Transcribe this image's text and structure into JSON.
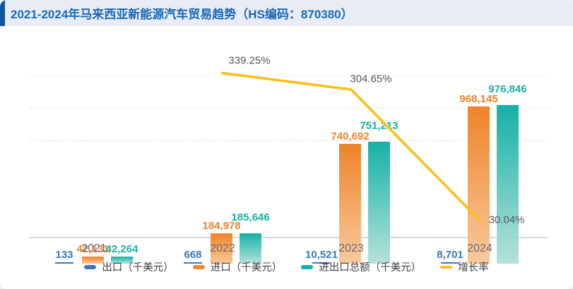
{
  "header": {
    "title": "2021-2024年马来西亚新能源汽车贸易趋势（HS编码：870380）"
  },
  "colors": {
    "header_bg": "#e7ecf7",
    "header_accent": "#1256a0",
    "title_text": "#1a69b4",
    "export_blue": "#3a76bb",
    "import_orange": "#f0862c",
    "import_orange_fade": "#f9c99c",
    "total_teal": "#14b2a6",
    "total_teal_fade": "#b5e2da",
    "growth_yellow": "#fcbe1a",
    "growth_label_text": "#55555d",
    "axis_line": "#d8d8dd"
  },
  "chart_data": {
    "type": "bar",
    "subtype": "grouped bars with growth-rate line overlay",
    "title": "2021-2024年马来西亚新能源汽车贸易趋势（HS编码：870380）",
    "categories": [
      "2021",
      "2022",
      "2023",
      "2024"
    ],
    "series": [
      {
        "key": "export",
        "name": "出口（千美元）",
        "type": "bar",
        "color": "#3a76bb",
        "values": [
          133,
          668,
          10521,
          8701
        ]
      },
      {
        "key": "import",
        "name": "进口（千美元）",
        "type": "bar",
        "color": "#f0862c",
        "values": [
          42131,
          184978,
          740692,
          968145
        ]
      },
      {
        "key": "total",
        "name": "进出口总额（千美元）",
        "type": "bar",
        "color": "#14b2a6",
        "values": [
          42264,
          185646,
          751213,
          976846
        ]
      },
      {
        "key": "growth",
        "name": "增长率",
        "type": "line",
        "color": "#fcbe1a",
        "values": [
          null,
          339.25,
          304.65,
          30.04
        ],
        "unit": "%"
      }
    ],
    "value_labels_shown": true,
    "growth_labels_shown": [
      "339.25%",
      "304.65%",
      "30.04%"
    ],
    "xlabel": "",
    "ylabel": "",
    "ylim": [
      0,
      1000000
    ],
    "y2lim": [
      0,
      500
    ],
    "gridlines_at": [
      600000,
      800000,
      1000000
    ],
    "grid_style": "dashed",
    "y_axis_labels_visible": false,
    "legend_position": "bottom"
  }
}
